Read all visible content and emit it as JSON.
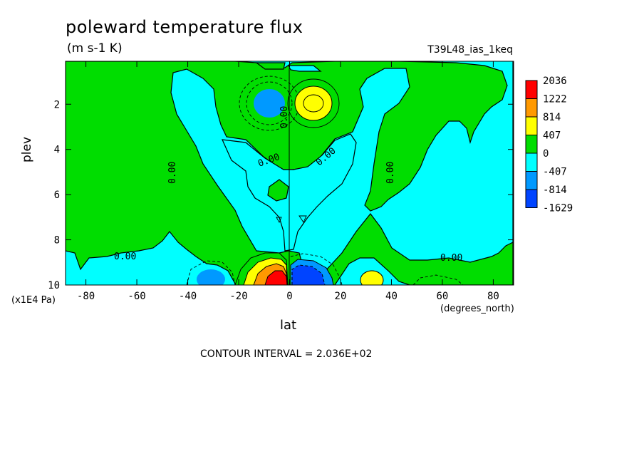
{
  "title": "poleward temperature flux",
  "units": "(m s-1 K)",
  "run_label": "T39L48_ias_1keq",
  "contour_interval_label": "CONTOUR INTERVAL = 2.036E+02",
  "chart_data": {
    "type": "heatmap",
    "title": "poleward temperature flux",
    "units": "(m s-1 K)",
    "xlabel": "lat",
    "x_unit": "(degrees_north)",
    "ylabel": "plev",
    "y_unit": "(x1E4 Pa)",
    "xlim": [
      -88,
      88
    ],
    "ylim": [
      10,
      0.1
    ],
    "x_ticks": [
      -80,
      -60,
      -40,
      -20,
      0,
      20,
      40,
      60,
      80
    ],
    "x_tick_labels": [
      "-80",
      "-60",
      "-40",
      "-20",
      "0",
      "20",
      "40",
      "60",
      "80"
    ],
    "y_ticks": [
      2,
      4,
      6,
      8,
      10
    ],
    "y_tick_labels": [
      "2",
      "4",
      "6",
      "8",
      "10"
    ],
    "contour_interval": 203.6,
    "contour_labels": [
      "0.00"
    ],
    "colorbar": {
      "levels": [
        "2036",
        "1222",
        "814",
        "407",
        "0",
        "-407",
        "-814",
        "-1629"
      ],
      "colors": [
        "#ff0000",
        "#ff9900",
        "#ffff00",
        "#00dd00",
        "#00ffff",
        "#0099ff",
        "#0044ff"
      ]
    },
    "features": [
      {
        "lat": -8,
        "plev": 9.5,
        "value": 2036,
        "sign": "positive"
      },
      {
        "lat": 8,
        "plev": 9.5,
        "value": -1629,
        "sign": "negative"
      },
      {
        "lat": 8,
        "plev": 2.0,
        "value": 814,
        "sign": "positive"
      },
      {
        "lat": -8,
        "plev": 2.0,
        "value": -814,
        "sign": "negative"
      },
      {
        "lat": -32,
        "plev": 9.7,
        "value": -814,
        "sign": "negative"
      },
      {
        "lat": 32,
        "plev": 9.7,
        "value": 407,
        "sign": "positive"
      }
    ]
  }
}
